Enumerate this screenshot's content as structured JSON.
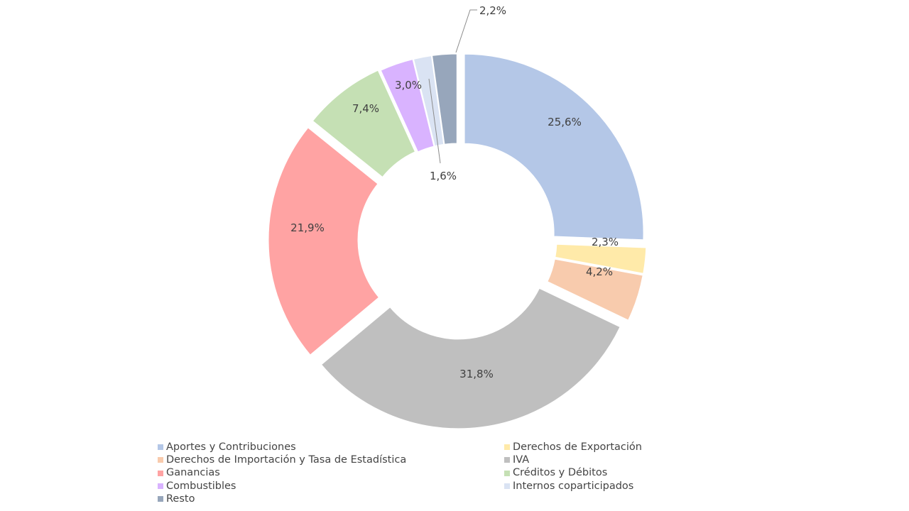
{
  "chart_data": {
    "type": "donut",
    "title": "",
    "categories": [
      "Aportes y Contribuciones",
      "Derechos de Exportación",
      "Derechos de Importación y Tasa de Estadística",
      "IVA",
      "Ganancias",
      "Créditos y Débitos",
      "Combustibles",
      "Internos coparticipados",
      "Resto"
    ],
    "values": [
      25.6,
      2.3,
      4.2,
      31.8,
      21.9,
      7.4,
      3.0,
      1.6,
      2.2
    ],
    "labels": [
      "25,6%",
      "2,3%",
      "4,2%",
      "31,8%",
      "21,9%",
      "7,4%",
      "3,0%",
      "1,6%",
      "2,2%"
    ],
    "colors": [
      "#b4c7e7",
      "#ffeaa9",
      "#f8cbad",
      "#bfbfbf",
      "#ffa3a3",
      "#c5e0b4",
      "#d9b3ff",
      "#dae3f3",
      "#97a6bb"
    ],
    "legend_position": "bottom",
    "legend_columns": 2
  }
}
